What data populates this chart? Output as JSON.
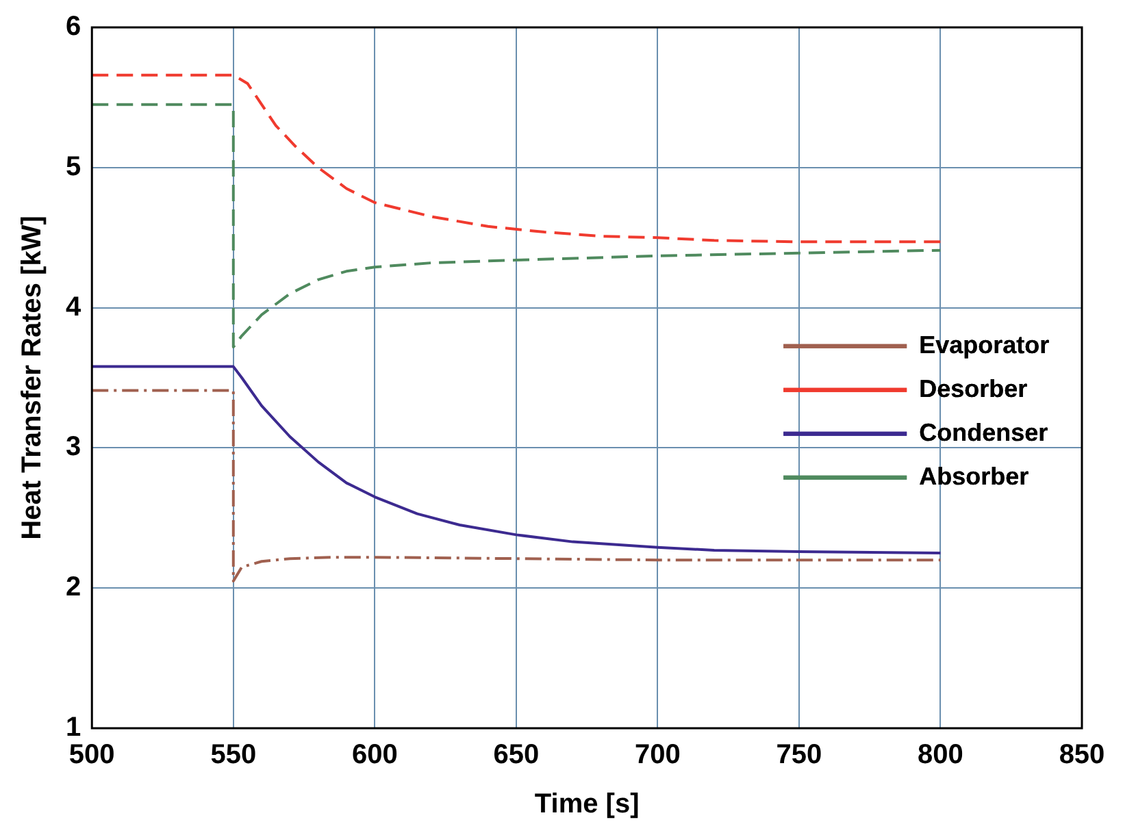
{
  "chart_data": {
    "type": "line",
    "xlabel": "Time [s]",
    "ylabel": "Heat Transfer Rates [kW]",
    "xlim": [
      500,
      850
    ],
    "xticks": [
      500,
      550,
      600,
      650,
      700,
      750,
      800,
      850
    ],
    "ylim": [
      1,
      6
    ],
    "yticks": [
      1,
      2,
      3,
      4,
      5,
      6
    ],
    "grid": true,
    "legend": "right",
    "marker": "none",
    "series": [
      {
        "name": "Evaporator",
        "color": "#a0604f",
        "line_style": "dashdot",
        "x": [
          500,
          550,
          550,
          553,
          560,
          570,
          585,
          600,
          650,
          700,
          750,
          800
        ],
        "values": [
          3.41,
          3.41,
          2.05,
          2.15,
          2.19,
          2.21,
          2.22,
          2.22,
          2.21,
          2.2,
          2.2,
          2.2
        ]
      },
      {
        "name": "Desorber",
        "color": "#f03a2e",
        "line_style": "dashed",
        "x": [
          500,
          550,
          555,
          560,
          565,
          572,
          580,
          590,
          600,
          620,
          640,
          660,
          680,
          700,
          720,
          750,
          800
        ],
        "values": [
          5.66,
          5.66,
          5.6,
          5.45,
          5.3,
          5.15,
          5.0,
          4.85,
          4.75,
          4.65,
          4.58,
          4.54,
          4.51,
          4.5,
          4.48,
          4.47,
          4.47
        ]
      },
      {
        "name": "Condenser",
        "color": "#3c2a90",
        "line_style": "solid",
        "x": [
          500,
          550,
          553,
          560,
          570,
          580,
          590,
          600,
          615,
          630,
          650,
          670,
          700,
          720,
          750,
          800
        ],
        "values": [
          3.58,
          3.58,
          3.5,
          3.3,
          3.08,
          2.9,
          2.75,
          2.65,
          2.53,
          2.45,
          2.38,
          2.33,
          2.29,
          2.27,
          2.26,
          2.25
        ]
      },
      {
        "name": "Absorber",
        "color": "#4f8a5e",
        "line_style": "dashed",
        "x": [
          500,
          550,
          550,
          553,
          560,
          570,
          580,
          590,
          600,
          620,
          650,
          700,
          750,
          800
        ],
        "values": [
          5.45,
          5.45,
          3.72,
          3.8,
          3.95,
          4.1,
          4.2,
          4.26,
          4.29,
          4.32,
          4.34,
          4.37,
          4.39,
          4.41
        ]
      }
    ]
  }
}
